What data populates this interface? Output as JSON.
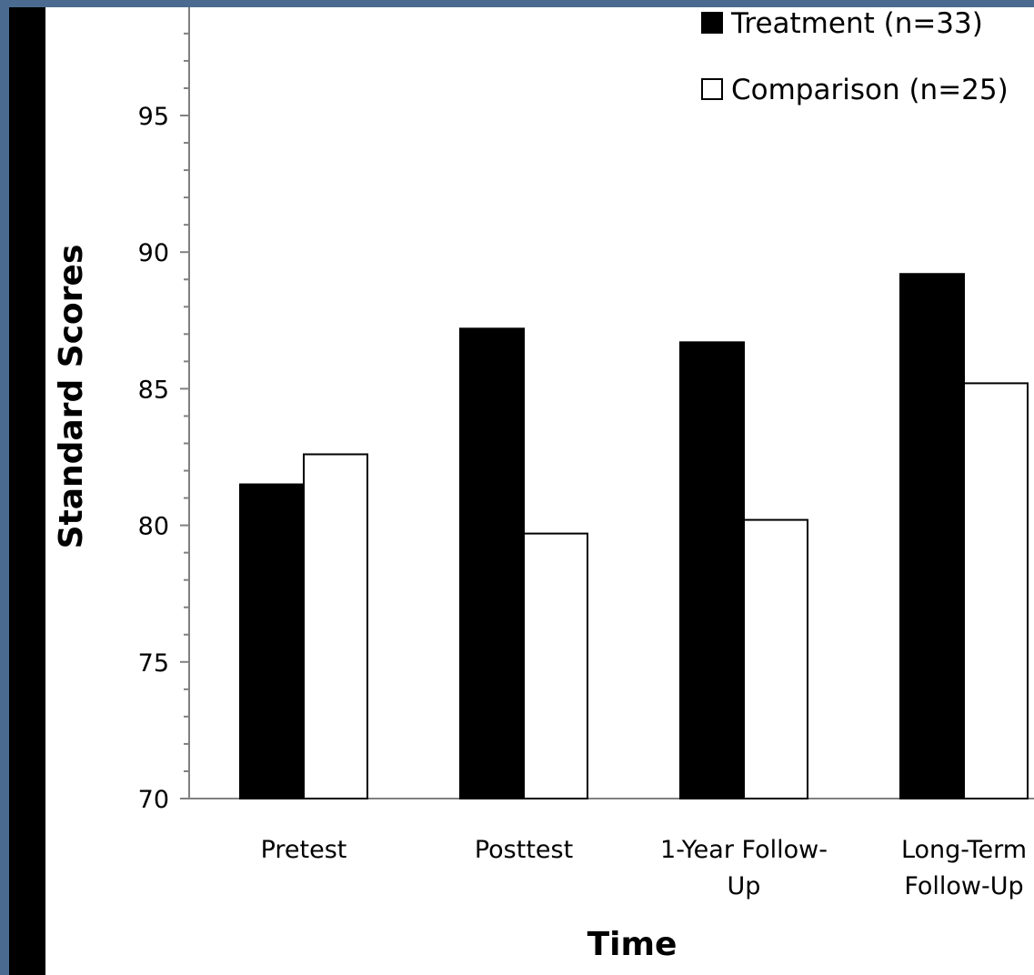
{
  "chart_data": {
    "type": "bar",
    "title": "",
    "xlabel": "Time",
    "ylabel": "Standard Scores",
    "ylim": [
      70,
      98
    ],
    "yticks": [
      "70",
      "75",
      "80",
      "85",
      "90",
      "95"
    ],
    "categories": [
      [
        "Pretest"
      ],
      [
        "Posttest"
      ],
      [
        "1-Year Follow-",
        "Up"
      ],
      [
        "Long-Term",
        "Follow-Up"
      ]
    ],
    "series": [
      {
        "name": "Treatment (n=33)",
        "color": "#000000",
        "values": [
          81.5,
          87.2,
          86.7,
          89.2
        ]
      },
      {
        "name": "Comparison (n=25)",
        "color": "#ffffff",
        "values": [
          82.6,
          79.7,
          80.2,
          85.2
        ]
      }
    ],
    "legend_position": "top-right",
    "grid": false
  }
}
